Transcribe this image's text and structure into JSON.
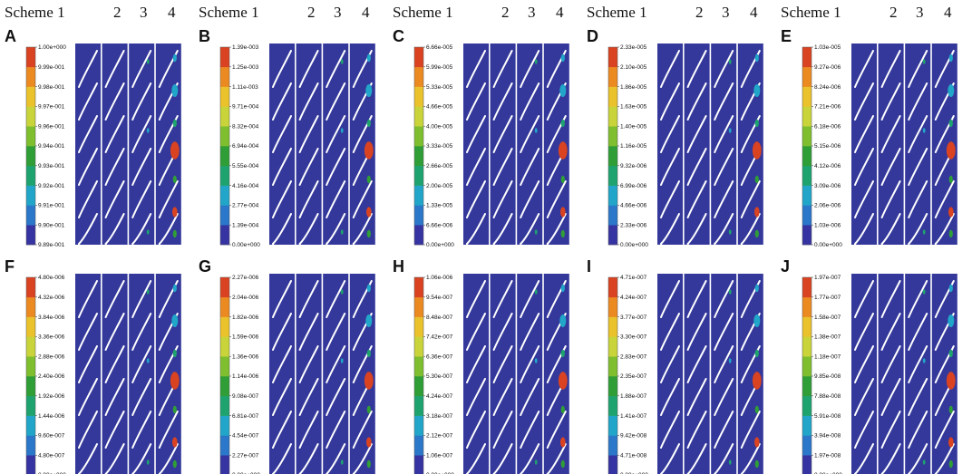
{
  "header": {
    "scheme_word": "Scheme",
    "columns": [
      "1",
      "2",
      "3",
      "4"
    ]
  },
  "colors": {
    "field": "#34389a",
    "blade": "#ffffff",
    "scale": [
      "#3633a2",
      "#2b77c9",
      "#21a6c9",
      "#1ea36f",
      "#2f9e37",
      "#7fbf2f",
      "#c8d43a",
      "#e9c22c",
      "#ec8a22",
      "#d94321"
    ]
  },
  "panels": [
    {
      "label": "A",
      "ticks": [
        "1.00e+000",
        "9.99e-001",
        "9.98e-001",
        "9.97e-001",
        "9.96e-001",
        "9.94e-001",
        "9.93e-001",
        "9.92e-001",
        "9.91e-001",
        "9.90e-001",
        "9.89e-001"
      ]
    },
    {
      "label": "B",
      "ticks": [
        "1.39e-003",
        "1.25e-003",
        "1.11e-003",
        "9.71e-004",
        "8.32e-004",
        "6.94e-004",
        "5.55e-004",
        "4.16e-004",
        "2.77e-004",
        "1.39e-004",
        "0.00e+000"
      ]
    },
    {
      "label": "C",
      "ticks": [
        "6.66e-005",
        "5.99e-005",
        "5.33e-005",
        "4.66e-005",
        "4.00e-005",
        "3.33e-005",
        "2.66e-005",
        "2.00e-005",
        "1.33e-005",
        "6.66e-006",
        "0.00e+000"
      ]
    },
    {
      "label": "D",
      "ticks": [
        "2.33e-005",
        "2.10e-005",
        "1.86e-005",
        "1.63e-005",
        "1.40e-005",
        "1.16e-005",
        "9.32e-006",
        "6.99e-006",
        "4.66e-006",
        "2.33e-006",
        "0.00e+000"
      ]
    },
    {
      "label": "E",
      "ticks": [
        "1.03e-005",
        "9.27e-006",
        "8.24e-006",
        "7.21e-006",
        "6.18e-006",
        "5.15e-006",
        "4.12e-006",
        "3.09e-006",
        "2.06e-006",
        "1.03e-006",
        "0.00e+000"
      ]
    },
    {
      "label": "F",
      "ticks": [
        "4.80e-006",
        "4.32e-006",
        "3.84e-006",
        "3.36e-006",
        "2.88e-006",
        "2.40e-006",
        "1.92e-006",
        "1.44e-006",
        "9.60e-007",
        "4.80e-007",
        "0.00e+000"
      ]
    },
    {
      "label": "G",
      "ticks": [
        "2.27e-006",
        "2.04e-006",
        "1.82e-006",
        "1.59e-006",
        "1.36e-006",
        "1.14e-006",
        "9.08e-007",
        "6.81e-007",
        "4.54e-007",
        "2.27e-007",
        "0.00e+000"
      ]
    },
    {
      "label": "H",
      "ticks": [
        "1.06e-006",
        "9.54e-007",
        "8.48e-007",
        "7.42e-007",
        "6.36e-007",
        "5.30e-007",
        "4.24e-007",
        "3.18e-007",
        "2.12e-007",
        "1.06e-007",
        "0.00e+000"
      ]
    },
    {
      "label": "I",
      "ticks": [
        "4.71e-007",
        "4.24e-007",
        "3.77e-007",
        "3.30e-007",
        "2.83e-007",
        "2.35e-007",
        "1.88e-007",
        "1.41e-007",
        "9.42e-008",
        "4.71e-008",
        "0.00e+000"
      ]
    },
    {
      "label": "J",
      "ticks": [
        "1.97e-007",
        "1.77e-007",
        "1.58e-007",
        "1.38e-007",
        "1.18e-007",
        "9.85e-008",
        "7.88e-008",
        "5.91e-008",
        "3.94e-008",
        "1.97e-008",
        "0.00e+000"
      ]
    }
  ]
}
